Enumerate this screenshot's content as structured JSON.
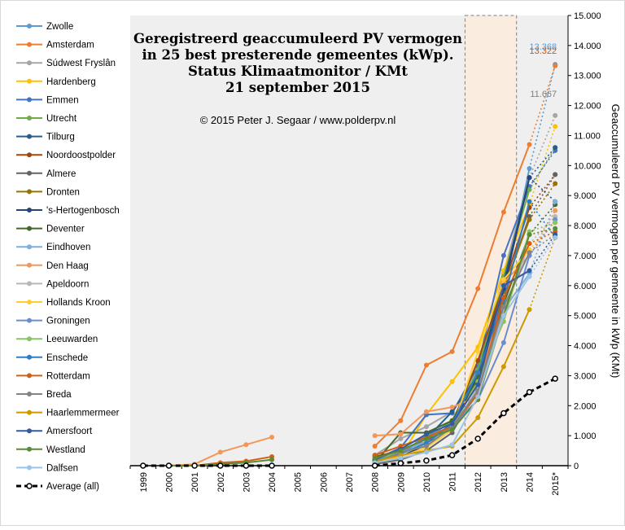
{
  "chart_data": {
    "type": "line",
    "title_lines": [
      "Geregistreerd geaccumuleerd  PV vermogen",
      "in 25 best presterende gemeentes (kWp).",
      "Status Klimaatmonitor  / KMt",
      "21 september 2015"
    ],
    "copyright": "© 2015 Peter J. Segaar / www.polderpv.nl",
    "ylabel": "Geaccumuleerd  PV vermogen  per gemeente in kWp  (KMt)",
    "xlabel": "",
    "categories": [
      "1999",
      "2000",
      "2001",
      "2002",
      "2003",
      "2004",
      "2005",
      "2006",
      "2007",
      "2008",
      "2009",
      "2010",
      "2011",
      "2012",
      "2013",
      "2014",
      "2015*"
    ],
    "ylim": [
      0,
      15000
    ],
    "yticks": [
      0,
      1000,
      2000,
      3000,
      4000,
      5000,
      6000,
      7000,
      8000,
      9000,
      10000,
      11000,
      12000,
      13000,
      14000,
      15000
    ],
    "ytick_labels": [
      "0",
      "1.000",
      "2.000",
      "3.000",
      "4.000",
      "5.000",
      "6.000",
      "7.000",
      "8.000",
      "9.000",
      "10.000",
      "11.000",
      "12.000",
      "13.000",
      "14.000",
      "15.000"
    ],
    "grid": false,
    "legend_position": "left",
    "highlight_span": [
      "2012",
      "2013"
    ],
    "projection_label": "2015*",
    "annotations": [
      {
        "text": "13.368",
        "x": "2015*",
        "y": 13368,
        "series": "Zwolle"
      },
      {
        "text": "13.322",
        "x": "2015*",
        "y": 13322,
        "series": "Amsterdam"
      },
      {
        "text": "11.667",
        "x": "2015*",
        "y": 11667,
        "series": "Súdwest Fryslân"
      }
    ],
    "series": [
      {
        "name": "Zwolle",
        "color": "#5b9bd5",
        "values": [
          null,
          null,
          null,
          null,
          null,
          null,
          null,
          null,
          null,
          150,
          400,
          900,
          1500,
          2900,
          5800,
          9900,
          13368
        ]
      },
      {
        "name": "Amsterdam",
        "color": "#ed7d31",
        "values": [
          null,
          null,
          null,
          null,
          null,
          null,
          null,
          null,
          null,
          650,
          1500,
          3350,
          3800,
          5900,
          8450,
          10700,
          13322
        ]
      },
      {
        "name": "Súdwest Fryslân",
        "color": "#a5a5a5",
        "values": [
          null,
          null,
          null,
          null,
          null,
          null,
          null,
          null,
          null,
          350,
          900,
          1300,
          1800,
          3100,
          6400,
          9600,
          11667
        ]
      },
      {
        "name": "Hardenberg",
        "color": "#ffc000",
        "values": [
          null,
          null,
          null,
          null,
          null,
          null,
          null,
          null,
          null,
          100,
          300,
          1700,
          2800,
          3950,
          6500,
          8700,
          11300
        ]
      },
      {
        "name": "Emmen",
        "color": "#4472c4",
        "values": [
          null,
          null,
          null,
          null,
          null,
          null,
          null,
          null,
          null,
          200,
          600,
          1700,
          1750,
          3300,
          7000,
          9300,
          10500
        ]
      },
      {
        "name": "Utrecht",
        "color": "#70ad47",
        "values": [
          null,
          null,
          null,
          null,
          null,
          null,
          null,
          null,
          null,
          150,
          500,
          900,
          1500,
          3200,
          6300,
          9200,
          10600
        ]
      },
      {
        "name": "Tilburg",
        "color": "#255e91",
        "values": [
          null,
          null,
          null,
          null,
          null,
          null,
          null,
          null,
          null,
          120,
          450,
          900,
          1800,
          3000,
          6100,
          9600,
          10600
        ]
      },
      {
        "name": "Noordoostpolder",
        "color": "#9e480e",
        "values": [
          null,
          null,
          null,
          null,
          null,
          null,
          null,
          null,
          null,
          300,
          500,
          800,
          1400,
          3500,
          6000,
          8600,
          9700
        ]
      },
      {
        "name": "Almere",
        "color": "#636363",
        "values": [
          null,
          null,
          null,
          null,
          null,
          null,
          null,
          null,
          null,
          50,
          200,
          500,
          1100,
          2600,
          5800,
          8300,
          9700
        ]
      },
      {
        "name": "Dronten",
        "color": "#997300",
        "values": [
          null,
          null,
          null,
          null,
          null,
          null,
          null,
          null,
          null,
          200,
          500,
          900,
          1300,
          2800,
          5900,
          8200,
          9400
        ]
      },
      {
        "name": "'s-Hertogenbosch",
        "color": "#264478",
        "values": [
          null,
          null,
          null,
          null,
          null,
          null,
          null,
          null,
          null,
          100,
          300,
          700,
          1300,
          3000,
          5900,
          9600,
          8800
        ]
      },
      {
        "name": "Deventer",
        "color": "#43682b",
        "values": [
          null,
          null,
          null,
          null,
          null,
          null,
          null,
          null,
          null,
          100,
          1100,
          1100,
          1500,
          2900,
          5400,
          7700,
          8700
        ]
      },
      {
        "name": "Eindhoven",
        "color": "#7cafdd",
        "values": [
          null,
          null,
          null,
          null,
          null,
          null,
          null,
          null,
          null,
          150,
          500,
          800,
          1200,
          2400,
          5200,
          6400,
          8800
        ]
      },
      {
        "name": "Den Haag",
        "color": "#f1975a",
        "values": [
          null,
          0,
          50,
          450,
          700,
          950,
          null,
          null,
          null,
          1000,
          1050,
          1800,
          1950,
          2300,
          6100,
          7000,
          8500
        ]
      },
      {
        "name": "Apeldoorn",
        "color": "#b7b7b7",
        "values": [
          null,
          null,
          null,
          null,
          null,
          null,
          null,
          null,
          null,
          100,
          400,
          700,
          1200,
          2600,
          5100,
          7400,
          8300
        ]
      },
      {
        "name": "Hollands Kroon",
        "color": "#ffcd33",
        "values": [
          null,
          null,
          null,
          null,
          null,
          null,
          null,
          null,
          null,
          100,
          300,
          600,
          1200,
          3800,
          6200,
          7200,
          8100
        ]
      },
      {
        "name": "Groningen",
        "color": "#698ed0",
        "values": [
          null,
          null,
          null,
          null,
          null,
          null,
          null,
          null,
          null,
          150,
          400,
          1000,
          1300,
          2200,
          4100,
          7000,
          8200
        ]
      },
      {
        "name": "Leeuwarden",
        "color": "#8cc168",
        "values": [
          null,
          null,
          null,
          null,
          null,
          null,
          null,
          null,
          null,
          100,
          500,
          900,
          1300,
          2800,
          4800,
          7800,
          8100
        ]
      },
      {
        "name": "Enschede",
        "color": "#327dc2",
        "values": [
          null,
          null,
          null,
          null,
          null,
          null,
          null,
          null,
          null,
          150,
          400,
          750,
          1400,
          3100,
          5500,
          8800,
          7600
        ]
      },
      {
        "name": "Rotterdam",
        "color": "#d26012",
        "values": [
          null,
          0,
          0,
          100,
          150,
          300,
          null,
          null,
          null,
          350,
          650,
          950,
          1300,
          2400,
          5600,
          7400,
          7800
        ]
      },
      {
        "name": "Breda",
        "color": "#848484",
        "values": [
          null,
          null,
          null,
          null,
          null,
          null,
          null,
          null,
          null,
          100,
          450,
          650,
          1300,
          2500,
          5300,
          7100,
          7700
        ]
      },
      {
        "name": "Haarlemmermeer",
        "color": "#cc9a00",
        "values": [
          null,
          null,
          null,
          null,
          null,
          null,
          null,
          null,
          null,
          150,
          350,
          500,
          650,
          1600,
          3300,
          5200,
          7600
        ]
      },
      {
        "name": "Amersfoort",
        "color": "#335aa1",
        "values": [
          null,
          null,
          null,
          null,
          null,
          null,
          null,
          null,
          null,
          200,
          550,
          1050,
          1400,
          2700,
          6000,
          6500,
          7700
        ]
      },
      {
        "name": "Westland",
        "color": "#5a8a39",
        "values": [
          null,
          0,
          0,
          50,
          100,
          200,
          null,
          null,
          null,
          250,
          500,
          900,
          1200,
          2200,
          5000,
          7700,
          7900
        ]
      },
      {
        "name": "Dalfsen",
        "color": "#9dc3e6",
        "values": [
          null,
          null,
          null,
          null,
          null,
          null,
          null,
          null,
          null,
          100,
          250,
          450,
          700,
          2300,
          5000,
          6300,
          7600
        ]
      },
      {
        "name": "Average (all)",
        "color": "#000000",
        "dashed": true,
        "values": [
          0,
          0,
          0,
          0,
          0,
          0,
          null,
          null,
          null,
          0,
          80,
          170,
          350,
          900,
          1750,
          2450,
          2900
        ]
      }
    ]
  }
}
